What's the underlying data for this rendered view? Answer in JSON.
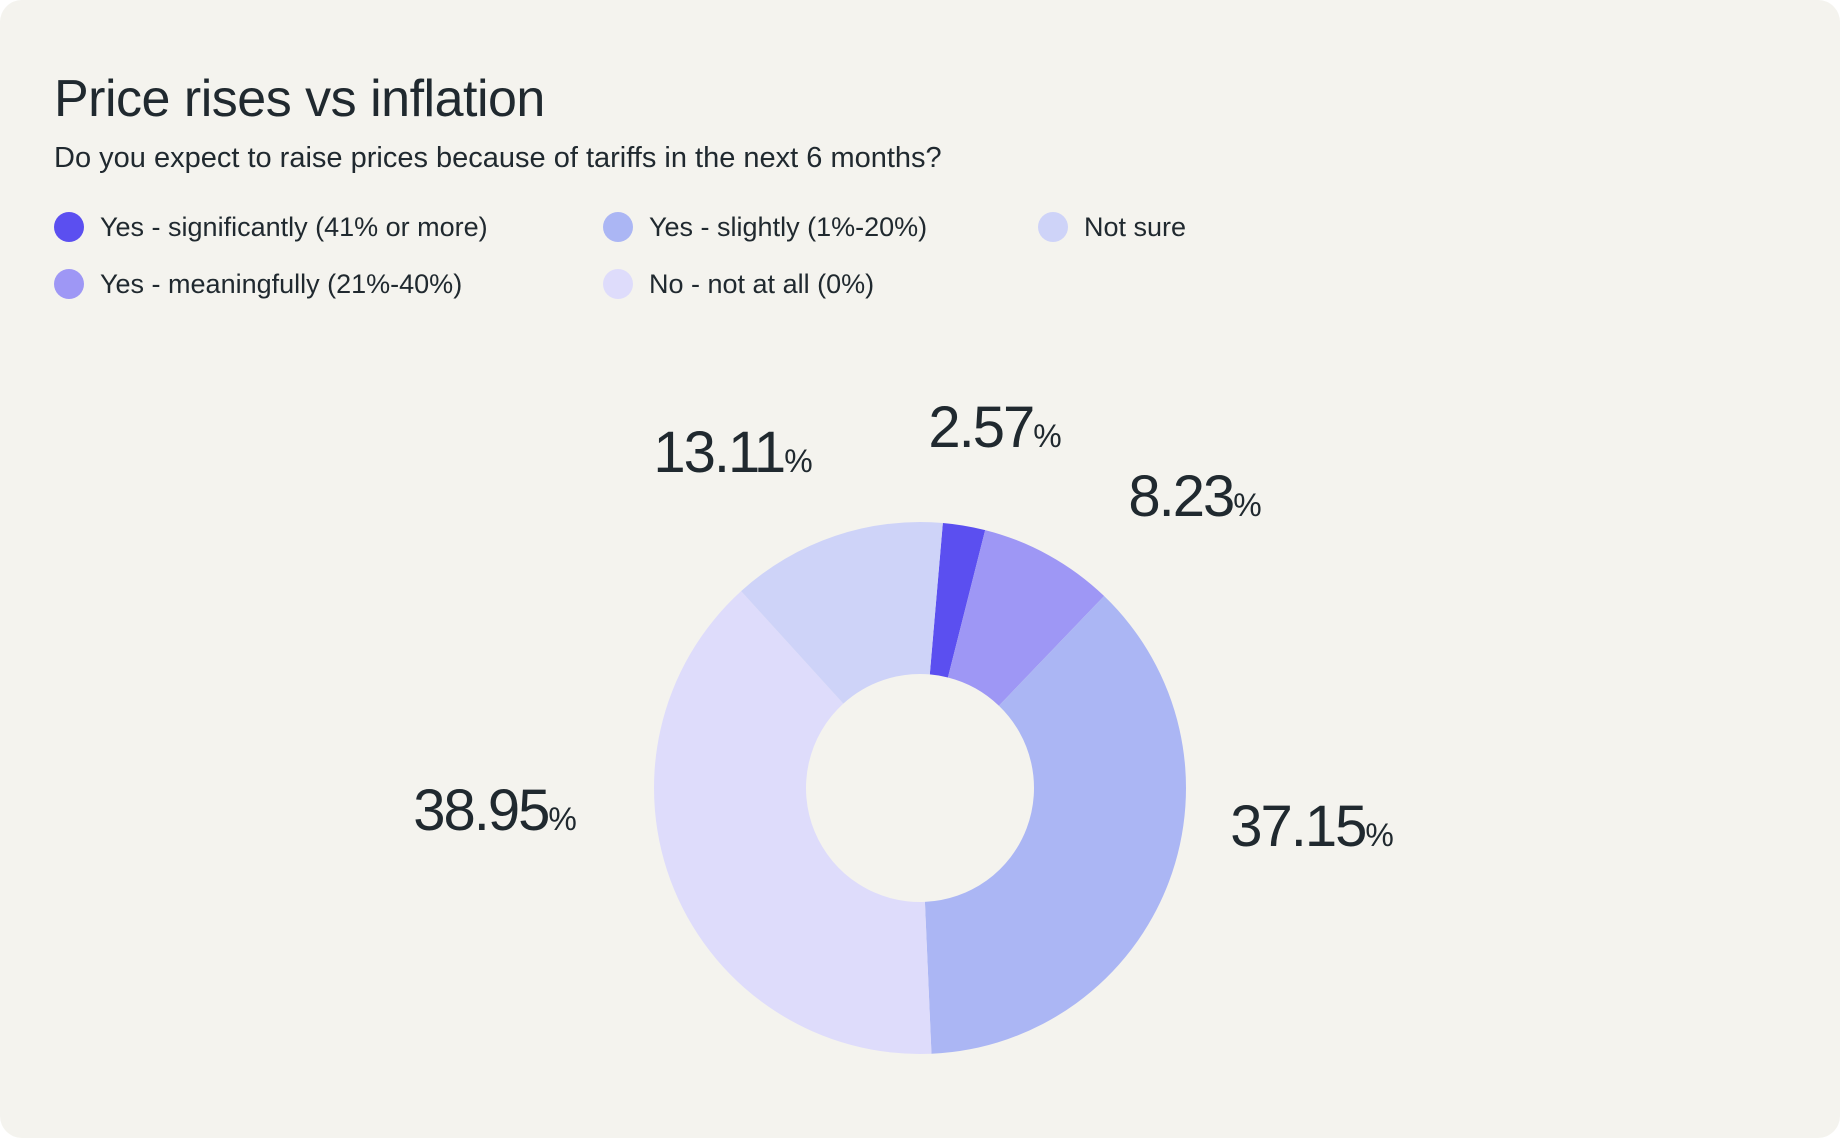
{
  "chart_data": {
    "type": "pie",
    "title": "Price rises vs inflation",
    "subtitle": "Do you expect to raise prices because of tariffs in the next 6 months?",
    "legend_position": "top-left",
    "categories": [
      "Yes - significantly (41% or more)",
      "Yes - meaningfully (21%-40%)",
      "Yes - slightly (1%-20%)",
      "No - not at all (0%)",
      "Not sure"
    ],
    "values": [
      2.57,
      8.23,
      37.15,
      38.95,
      13.11
    ],
    "value_labels": [
      "2.57",
      "8.23",
      "37.15",
      "38.95",
      "13.11"
    ],
    "unit": "%",
    "colors": [
      "#5b4ff0",
      "#9e97f5",
      "#abb6f4",
      "#dedcfb",
      "#ced3f8"
    ]
  },
  "legend": [
    {
      "label": "Yes - significantly (41% or more)",
      "color": "#5b4ff0"
    },
    {
      "label": "Yes - slightly (1%-20%)",
      "color": "#abb6f4"
    },
    {
      "label": "Not sure",
      "color": "#ced3f8"
    },
    {
      "label": "Yes - meaningfully (21%-40%)",
      "color": "#9e97f5"
    },
    {
      "label": "No - not at all (0%)",
      "color": "#dedcfb"
    }
  ]
}
